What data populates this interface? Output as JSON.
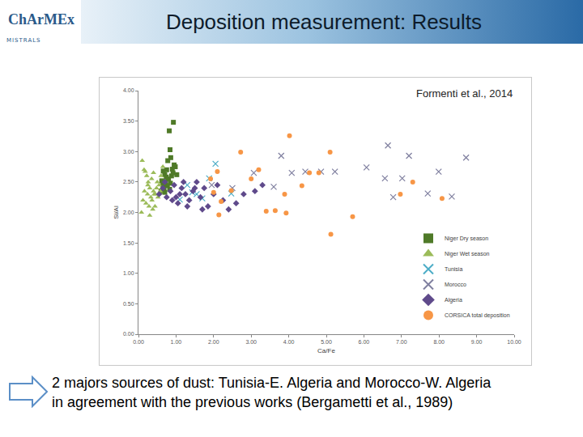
{
  "header": {
    "title": "Deposition measurement: Results",
    "logo": [
      "ChArMEx",
      "MISTRALS"
    ]
  },
  "caption": [
    "2 majors sources of dust: Tunisia-E. Algeria and Morocco-W. Algeria",
    "in agreement with the previous works (Bergametti et al., 1989)"
  ],
  "chart_data": {
    "type": "scatter",
    "annotation": "Formenti et al., 2014",
    "x_label": "Ca/Fe",
    "y_label": "Si/Al",
    "xlim": [
      0,
      10
    ],
    "xticks": [
      {
        "value": 0,
        "label": "0.00"
      },
      {
        "value": 1,
        "label": "1.00"
      },
      {
        "value": 2,
        "label": "2.00"
      },
      {
        "value": 3,
        "label": "3.00"
      },
      {
        "value": 4,
        "label": "4.00"
      },
      {
        "value": 5,
        "label": "5.00"
      },
      {
        "value": 6,
        "label": "6.00"
      },
      {
        "value": 7,
        "label": "7.00"
      },
      {
        "value": 8,
        "label": "8.00"
      },
      {
        "value": 9,
        "label": "9.00"
      },
      {
        "value": 10,
        "label": "10.00"
      }
    ],
    "ylim": [
      0,
      4
    ],
    "yticks": [
      {
        "value": 0,
        "label": "0.00"
      },
      {
        "value": 0.5,
        "label": "0.50"
      },
      {
        "value": 1,
        "label": "1.00"
      },
      {
        "value": 1.5,
        "label": "1.50"
      },
      {
        "value": 2,
        "label": "2.00"
      },
      {
        "value": 2.5,
        "label": "2.50"
      },
      {
        "value": 3,
        "label": "3.00"
      },
      {
        "value": 3.5,
        "label": "3.50"
      },
      {
        "value": 4,
        "label": "4.00"
      }
    ],
    "grid": false,
    "legend": "lower right",
    "series": [
      {
        "name": "Niger Dry season",
        "color": "#4f7a28",
        "marker": "square",
        "x": [
          0.93,
          0.82,
          0.84,
          0.86,
          0.9,
          0.95,
          0.7,
          0.75,
          0.8,
          0.65,
          0.72,
          0.78,
          0.88,
          0.6,
          0.68,
          0.74,
          0.85,
          0.92,
          0.98,
          0.62,
          0.7,
          0.77,
          0.83,
          1.02,
          0.66
        ],
        "y": [
          3.48,
          3.34,
          3.03,
          2.9,
          2.71,
          2.78,
          2.62,
          2.7,
          2.55,
          2.45,
          2.5,
          2.85,
          2.6,
          2.35,
          2.4,
          2.58,
          2.48,
          2.65,
          2.75,
          2.52,
          2.33,
          2.44,
          2.38,
          2.62,
          2.68
        ]
      },
      {
        "name": "Niger Wet season",
        "color": "#9bbb59",
        "marker": "triangle",
        "x": [
          0.1,
          0.15,
          0.18,
          0.22,
          0.25,
          0.3,
          0.35,
          0.4,
          0.45,
          0.5,
          0.12,
          0.2,
          0.28,
          0.33,
          0.38,
          0.42,
          0.48,
          0.55,
          0.6,
          0.65,
          0.08,
          0.16,
          0.24,
          0.36,
          0.44,
          0.52,
          0.58,
          0.3,
          0.26,
          0.4
        ],
        "y": [
          2.85,
          2.7,
          2.67,
          2.6,
          2.45,
          2.4,
          2.55,
          2.35,
          2.3,
          2.5,
          2.2,
          2.15,
          2.1,
          2.25,
          2.05,
          2.3,
          2.4,
          2.45,
          2.6,
          2.75,
          2.0,
          2.35,
          2.3,
          2.2,
          2.1,
          2.25,
          2.35,
          1.95,
          2.5,
          2.65
        ]
      },
      {
        "name": "Tunisia",
        "color": "#4bacc6",
        "marker": "x",
        "x": [
          1.1,
          1.43,
          1.55,
          1.7,
          1.88,
          2.05,
          2.47,
          1.3
        ],
        "y": [
          2.21,
          2.33,
          2.3,
          2.23,
          2.56,
          2.8,
          2.31,
          2.45
        ]
      },
      {
        "name": "Morocco",
        "color": "#7f7f9f",
        "marker": "x",
        "x": [
          3.07,
          3.6,
          3.8,
          4.08,
          4.44,
          4.86,
          5.23,
          6.07,
          6.56,
          6.64,
          6.78,
          7.02,
          7.2,
          7.7,
          7.99,
          8.34,
          8.72,
          2.5,
          1.95
        ],
        "y": [
          2.65,
          2.42,
          2.93,
          2.65,
          2.67,
          2.67,
          2.67,
          2.74,
          2.56,
          3.1,
          2.25,
          2.56,
          2.93,
          2.31,
          2.67,
          2.26,
          2.9,
          2.4,
          2.45
        ]
      },
      {
        "name": "Algeria",
        "color": "#5f4a8b",
        "marker": "diamond",
        "x": [
          0.55,
          0.65,
          0.75,
          0.85,
          0.95,
          1.05,
          1.15,
          1.25,
          1.35,
          1.45,
          1.55,
          1.65,
          1.75,
          1.85,
          2.0,
          2.1,
          2.25,
          2.4,
          2.6,
          2.8,
          3.1,
          3.3,
          0.7,
          0.9,
          1.1,
          1.3,
          1.5,
          1.7,
          1.2,
          1.0
        ],
        "y": [
          2.3,
          2.4,
          2.25,
          2.35,
          2.45,
          2.15,
          2.4,
          2.3,
          2.2,
          2.35,
          2.5,
          2.25,
          2.4,
          2.1,
          2.3,
          2.45,
          2.2,
          2.05,
          2.15,
          2.3,
          2.35,
          2.45,
          2.5,
          2.2,
          2.3,
          2.1,
          2.4,
          2.05,
          2.5,
          2.25
        ]
      },
      {
        "name": "CORSICA total deposition",
        "color": "#f79646",
        "marker": "circle",
        "x": [
          2.1,
          2.47,
          2.72,
          3.0,
          3.4,
          3.64,
          3.89,
          4.02,
          4.35,
          4.55,
          5.1,
          5.7,
          5.12,
          6.97,
          8.08,
          3.93,
          1.92,
          2.0,
          2.2,
          2.14,
          3.2,
          4.8,
          7.3
        ],
        "y": [
          2.67,
          2.36,
          2.99,
          2.55,
          2.02,
          2.03,
          2.3,
          3.26,
          2.44,
          2.65,
          2.99,
          1.93,
          1.64,
          2.3,
          2.23,
          1.99,
          2.55,
          2.33,
          2.18,
          1.96,
          2.7,
          2.65,
          2.5
        ]
      }
    ]
  }
}
